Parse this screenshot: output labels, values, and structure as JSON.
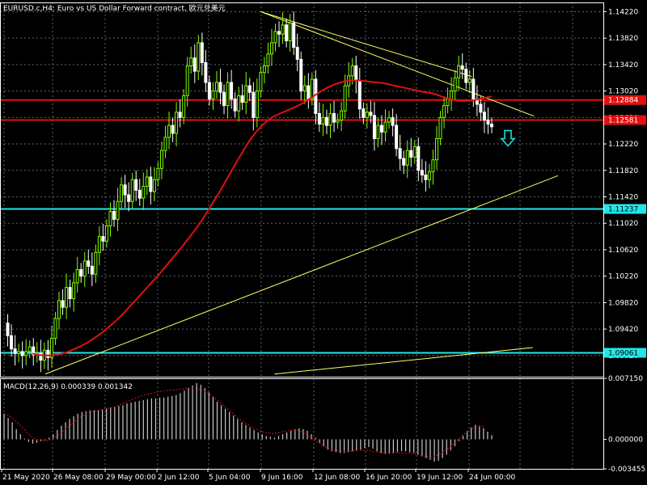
{
  "window": {
    "title": "EURUSD.c,H4:  Euro vs US Dollar Forward contract, 欧元兑美元",
    "macd_label": "MACD(12,26,9) 0.000339 0.001342"
  },
  "colors": {
    "background": "#000000",
    "grid": "#5a6a6a",
    "candle_up": "#7fff00",
    "candle_down": "#ffffff",
    "ma_line": "#e01010",
    "resistance": "#e01010",
    "support": "#22e6e6",
    "trendline": "#ffff66",
    "arrow": "#22e6e6",
    "macd_hist": "#c8c8c8",
    "macd_signal": "#e01010"
  },
  "chart_data": {
    "type": "candlestick",
    "symbol": "EURUSD.c",
    "timeframe": "H4",
    "ylim": [
      1.087,
      1.1436
    ],
    "y_ticks": [
      "1.14220",
      "1.13820",
      "1.13420",
      "1.13020",
      "1.12620",
      "1.12220",
      "1.11820",
      "1.11420",
      "1.11020",
      "1.10620",
      "1.10220",
      "1.09820",
      "1.09420",
      "1.09020"
    ],
    "x_ticks": [
      "21 May 2020",
      "26 May 08:00",
      "29 May 00:00",
      "2 Jun 12:00",
      "5 Jun 04:00",
      "9 Jun 16:00",
      "12 Jun 08:00",
      "16 Jun 20:00",
      "19 Jun 12:00",
      "24 Jun 00:00"
    ],
    "horizontal_lines": [
      {
        "name": "resistance-upper",
        "price": 1.12884,
        "label": "1.12884",
        "color": "#e01010"
      },
      {
        "name": "resistance-lower",
        "price": 1.12581,
        "label": "1.12581",
        "color": "#e01010"
      },
      {
        "name": "support-upper",
        "price": 1.11237,
        "label": "1.11237",
        "color": "#22e6e6"
      },
      {
        "name": "support-lower",
        "price": 1.09061,
        "label": "1.09061",
        "color": "#22e6e6"
      }
    ],
    "close_path": [
      1.0951,
      1.0932,
      1.0912,
      1.0905,
      1.0908,
      1.0902,
      1.0908,
      1.0915,
      1.0903,
      1.0905,
      1.0895,
      1.091,
      1.0899,
      1.0928,
      1.0958,
      1.0985,
      1.0975,
      1.1005,
      1.0988,
      1.1012,
      1.1032,
      1.1022,
      1.1045,
      1.1037,
      1.1025,
      1.1058,
      1.1082,
      1.1075,
      1.1098,
      1.112,
      1.1108,
      1.1135,
      1.116,
      1.1145,
      1.1135,
      1.1168,
      1.1152,
      1.114,
      1.1158,
      1.1172,
      1.115,
      1.1168,
      1.1185,
      1.1212,
      1.1232,
      1.125,
      1.1238,
      1.127,
      1.1262,
      1.1295,
      1.134,
      1.1352,
      1.1332,
      1.1375,
      1.1345,
      1.1315,
      1.129,
      1.1302,
      1.1315,
      1.13,
      1.128,
      1.1315,
      1.129,
      1.1272,
      1.1295,
      1.1285,
      1.131,
      1.13,
      1.1262,
      1.1302,
      1.133,
      1.134,
      1.1358,
      1.1375,
      1.1392,
      1.1388,
      1.1402,
      1.1378,
      1.1405,
      1.1368,
      1.135,
      1.1302,
      1.131,
      1.129,
      1.132,
      1.1268,
      1.1252,
      1.1262,
      1.125,
      1.1268,
      1.1255,
      1.1258,
      1.1272,
      1.131,
      1.1325,
      1.134,
      1.1318,
      1.1275,
      1.1262,
      1.127,
      1.1265,
      1.123,
      1.125,
      1.124,
      1.1255,
      1.1262,
      1.125,
      1.1215,
      1.12,
      1.119,
      1.1212,
      1.1202,
      1.1218,
      1.1182,
      1.1175,
      1.1168,
      1.118,
      1.1198,
      1.123,
      1.1262,
      1.128,
      1.129,
      1.1302,
      1.1322,
      1.134,
      1.1335,
      1.1315,
      1.132,
      1.129,
      1.1282,
      1.127,
      1.1258,
      1.1252,
      1.1248
    ],
    "ma_path": [
      1.0905,
      1.0903,
      1.0902,
      1.0902,
      1.0903,
      1.0905,
      1.0908,
      1.0912,
      1.0916,
      1.0921,
      1.0927,
      1.0933,
      1.094,
      1.0948,
      1.0956,
      1.0965,
      1.0975,
      1.0985,
      1.0995,
      1.1005,
      1.1015,
      1.1025,
      1.1036,
      1.1047,
      1.1058,
      1.1069,
      1.1081,
      1.1093,
      1.1106,
      1.112,
      1.1135,
      1.115,
      1.1166,
      1.1182,
      1.1198,
      1.1213,
      1.1228,
      1.124,
      1.125,
      1.1258,
      1.1264,
      1.1268,
      1.1272,
      1.1276,
      1.128,
      1.1285,
      1.1291,
      1.1297,
      1.1303,
      1.1308,
      1.1312,
      1.1315,
      1.1317,
      1.1318,
      1.1318,
      1.1317,
      1.1316,
      1.1315,
      1.1314,
      1.1312,
      1.131,
      1.1308,
      1.1306,
      1.1304,
      1.1302,
      1.13,
      1.1299,
      1.1296,
      1.1293,
      1.129,
      1.1288,
      1.1287,
      1.1287,
      1.1288,
      1.129,
      1.1292,
      1.1294
    ],
    "trendlines": [
      {
        "name": "upper-trendline-steep",
        "from": [
          0.432,
          1.1422
        ],
        "to": [
          0.885,
          1.1264
        ]
      },
      {
        "name": "upper-trendline-short",
        "from": [
          0.432,
          1.1422
        ],
        "to": [
          0.782,
          1.1324
        ]
      },
      {
        "name": "lower-trendline-main",
        "from": [
          0.075,
          1.0874
        ],
        "to": [
          0.925,
          1.1174
        ]
      },
      {
        "name": "lower-trendline-flat",
        "from": [
          0.455,
          1.0874
        ],
        "to": [
          0.883,
          1.0914
        ]
      }
    ],
    "signal_arrow": {
      "direction": "down",
      "price": 1.123
    },
    "macd": {
      "label": "MACD(12,26,9) 0.000339 0.001342",
      "ylim": [
        -0.003455,
        0.00715
      ],
      "y_ticks": [
        "0.007150",
        "0.000000",
        "-0.003455"
      ],
      "histogram": [
        0.003,
        0.0025,
        0.002,
        0.0012,
        0.0006,
        0.0001,
        -0.0003,
        -0.0005,
        -0.0004,
        -0.0002,
        -0.0001,
        0.0002,
        0.0006,
        0.0011,
        0.0016,
        0.002,
        0.0024,
        0.0027,
        0.003,
        0.0032,
        0.0033,
        0.0034,
        0.0034,
        0.0034,
        0.0035,
        0.0036,
        0.0037,
        0.0038,
        0.0039,
        0.004,
        0.0042,
        0.0043,
        0.0044,
        0.0045,
        0.0046,
        0.0047,
        0.0048,
        0.0048,
        0.0049,
        0.0049,
        0.005,
        0.0051,
        0.0052,
        0.0054,
        0.0057,
        0.006,
        0.0063,
        0.0066,
        0.0064,
        0.006,
        0.0055,
        0.005,
        0.0044,
        0.004,
        0.0036,
        0.0032,
        0.0028,
        0.0024,
        0.002,
        0.0017,
        0.0014,
        0.0011,
        0.0008,
        0.0006,
        0.0004,
        0.0003,
        0.0002,
        0.0004,
        0.0006,
        0.0008,
        0.001,
        0.0012,
        0.0013,
        0.0012,
        0.001,
        0.0006,
        0.0002,
        -0.0004,
        -0.0008,
        -0.0012,
        -0.0014,
        -0.0015,
        -0.0016,
        -0.0016,
        -0.0015,
        -0.0014,
        -0.0013,
        -0.0012,
        -0.001,
        -0.0009,
        -0.0011,
        -0.0014,
        -0.0016,
        -0.0017,
        -0.0017,
        -0.0016,
        -0.0015,
        -0.0014,
        -0.0014,
        -0.0015,
        -0.0016,
        -0.0018,
        -0.002,
        -0.0022,
        -0.0024,
        -0.0026,
        -0.0025,
        -0.0022,
        -0.0018,
        -0.0013,
        -0.0008,
        -0.0002,
        0.0004,
        0.001,
        0.0014,
        0.0017,
        0.0016,
        0.0013,
        0.0009,
        0.0005
      ],
      "signal": [
        0.003,
        0.0028,
        0.0025,
        0.0021,
        0.0016,
        0.0011,
        0.0006,
        0.0002,
        -0.0001,
        -0.0002,
        -0.0002,
        -0.0001,
        0.0001,
        0.0004,
        0.0008,
        0.0012,
        0.0016,
        0.002,
        0.0024,
        0.0027,
        0.003,
        0.0032,
        0.0033,
        0.0034,
        0.0035,
        0.0036,
        0.0037,
        0.0038,
        0.004,
        0.0042,
        0.0044,
        0.0046,
        0.0048,
        0.005,
        0.0052,
        0.0053,
        0.0054,
        0.0055,
        0.0056,
        0.0057,
        0.0057,
        0.0058,
        0.0058,
        0.0059,
        0.0059,
        0.006,
        0.006,
        0.0059,
        0.0058,
        0.0056,
        0.0053,
        0.005,
        0.0046,
        0.0042,
        0.0038,
        0.0034,
        0.003,
        0.0026,
        0.0022,
        0.0019,
        0.0016,
        0.0013,
        0.0011,
        0.0009,
        0.0008,
        0.0007,
        0.0007,
        0.0008,
        0.0009,
        0.001,
        0.0011,
        0.0011,
        0.001,
        0.0008,
        0.0005,
        0.0002,
        -0.0002,
        -0.0005,
        -0.0008,
        -0.001,
        -0.0012,
        -0.0013,
        -0.0014,
        -0.0014,
        -0.0014,
        -0.0014,
        -0.0013,
        -0.0013,
        -0.0013,
        -0.0013,
        -0.0014,
        -0.0015,
        -0.0015,
        -0.0016,
        -0.0016,
        -0.0016,
        -0.0016,
        -0.0016,
        -0.0016,
        -0.0016,
        -0.0017,
        -0.0018,
        -0.0019,
        -0.002,
        -0.0021,
        -0.002,
        -0.0018,
        -0.0015,
        -0.0012,
        -0.0008,
        -0.0004,
        0.0001,
        0.0005,
        0.0009,
        0.0012,
        0.0014,
        0.0015,
        0.0015
      ]
    }
  }
}
